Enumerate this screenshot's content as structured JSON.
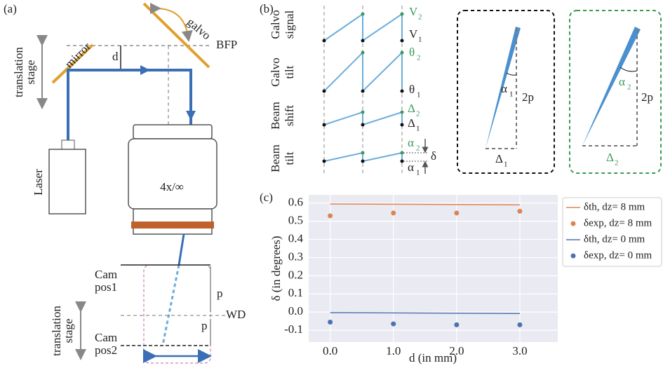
{
  "panel_labels": [
    "(a)",
    "(b)",
    "(c)"
  ],
  "setup": {
    "galvo": "galvo",
    "bfp": "BFP",
    "mirror": "mirror",
    "d": "d",
    "stage_top": [
      "translation",
      "stage"
    ],
    "laser": "Laser",
    "objective": "4x/∞",
    "cam_pos1": [
      "Cam",
      "pos1"
    ],
    "p_upper": "p",
    "wd": "WD",
    "p_lower": "p",
    "cam_pos2": [
      "Cam",
      "pos2"
    ],
    "stage_bottom": [
      "translation",
      "stage"
    ]
  },
  "signals": {
    "rows": [
      [
        "Galvo",
        "signal"
      ],
      [
        "Galvo",
        "tilt"
      ],
      [
        "Beam",
        "shift"
      ],
      [
        "Beam",
        "tilt"
      ]
    ],
    "symbols": [
      {
        "symbol": "V",
        "sub": "2"
      },
      {
        "symbol": "V",
        "sub": "1"
      },
      {
        "symbol": "θ",
        "sub": "2"
      },
      {
        "symbol": "θ",
        "sub": "1"
      },
      {
        "symbol": "Δ",
        "sub": "2"
      },
      {
        "symbol": "Δ",
        "sub": "1"
      },
      {
        "symbol": "α",
        "sub": "2"
      },
      {
        "symbol": "α",
        "sub": "1"
      }
    ],
    "delta": "δ",
    "inset_1": {
      "angle": {
        "symbol": "α",
        "sub": "1"
      },
      "height": "2p",
      "base": {
        "symbol": "Δ",
        "sub": "1"
      }
    },
    "inset_2": {
      "angle": {
        "symbol": "α",
        "sub": "2"
      },
      "height": "2p",
      "base": {
        "symbol": "Δ",
        "sub": "2"
      }
    }
  },
  "chart_data": {
    "type": "line",
    "xlabel": "d (in mm)",
    "ylabel": "δ (in degrees)",
    "xlim": [
      -0.34,
      3.6
    ],
    "ylim": [
      -0.165,
      0.645
    ],
    "xticks": [
      {
        "value": 0,
        "label": "0.0"
      },
      {
        "value": 1,
        "label": "1.0"
      },
      {
        "value": 2,
        "label": "2.0"
      },
      {
        "value": 3,
        "label": "3.0"
      }
    ],
    "yticks": [
      -0.1,
      {
        "value": 0,
        "label": "0.0"
      },
      0.1,
      0.2,
      0.3,
      0.4,
      0.5,
      0.6
    ],
    "grid": true,
    "legend": "outside right",
    "series": [
      {
        "name": "δth, dz= 8 mm",
        "type": "line",
        "color": "#dd8452",
        "x": [
          0,
          3
        ],
        "values": [
          0.595,
          0.59
        ]
      },
      {
        "name": "δexp, dz= 8 mm",
        "type": "scatter",
        "color": "#dd8452",
        "x": [
          0,
          1,
          2,
          3
        ],
        "values": [
          0.53,
          0.545,
          0.545,
          0.555
        ]
      },
      {
        "name": "δth, dz= 0 mm",
        "type": "line",
        "color": "#4c72b0",
        "x": [
          0,
          3
        ],
        "values": [
          -0.003,
          -0.008
        ]
      },
      {
        "name": "δexp, dz= 0 mm",
        "type": "scatter",
        "color": "#4c72b0",
        "x": [
          0,
          1,
          2,
          3
        ],
        "values": [
          -0.055,
          -0.065,
          -0.07,
          -0.07
        ]
      }
    ]
  }
}
